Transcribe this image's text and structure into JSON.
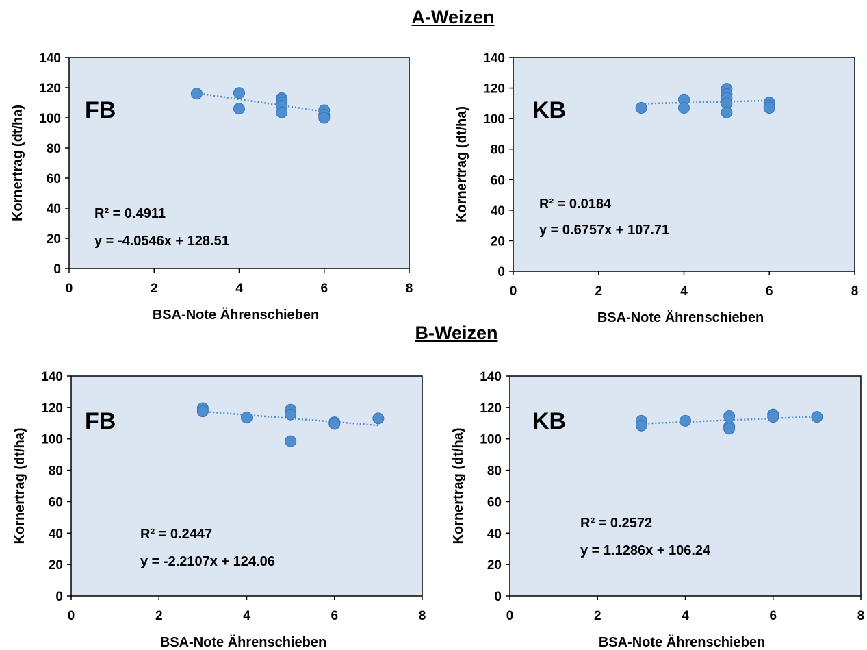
{
  "section_titles": [
    "A-Weizen",
    "B-Weizen"
  ],
  "colors": {
    "plot_background": "#dce6f2",
    "marker": "#4f8fd0",
    "marker_edge": "#3a75b8",
    "trendline": "#4f8fd0"
  },
  "chart_data": [
    {
      "type": "scatter",
      "section": "A-Weizen",
      "panel_label": "FB",
      "xlabel": "BSA-Note Ährenschieben",
      "ylabel": "Kornertrag (dt/ha)",
      "xlim": [
        0,
        8
      ],
      "ylim": [
        0,
        140
      ],
      "x_ticks": [
        0,
        2,
        4,
        6,
        8
      ],
      "y_ticks": [
        0,
        20,
        40,
        60,
        80,
        100,
        120,
        140
      ],
      "grid": false,
      "series": [
        {
          "x": [
            3,
            4,
            4,
            5,
            5,
            5,
            5,
            5,
            6,
            6,
            6
          ],
          "y": [
            116,
            116.5,
            106,
            113,
            112,
            110,
            108,
            103.5,
            105,
            102,
            100
          ]
        }
      ],
      "trendline": {
        "type": "linear",
        "slope": -4.0546,
        "intercept": 128.51
      },
      "annotations": [
        "R² = 0.4911",
        "y = -4.0546x + 128.51"
      ]
    },
    {
      "type": "scatter",
      "section": "A-Weizen",
      "panel_label": "KB",
      "xlabel": "BSA-Note Ährenschieben",
      "ylabel": "Kornertrag (dt/ha)",
      "xlim": [
        0,
        8
      ],
      "ylim": [
        0,
        140
      ],
      "x_ticks": [
        0,
        2,
        4,
        6,
        8
      ],
      "y_ticks": [
        0,
        20,
        40,
        60,
        80,
        100,
        120,
        140
      ],
      "grid": false,
      "series": [
        {
          "x": [
            3,
            4,
            4,
            5,
            5,
            5,
            5,
            5,
            6,
            6,
            6
          ],
          "y": [
            107,
            112.5,
            107,
            119.5,
            116,
            113.5,
            110,
            104,
            110.5,
            108.5,
            107
          ]
        }
      ],
      "trendline": {
        "type": "linear",
        "slope": 0.6757,
        "intercept": 107.71
      },
      "annotations": [
        "R² = 0.0184",
        "y = 0.6757x + 107.71"
      ]
    },
    {
      "type": "scatter",
      "section": "B-Weizen",
      "panel_label": "FB",
      "xlabel": "BSA-Note Ährenschieben",
      "ylabel": "Kornertrag (dt/ha)",
      "xlim": [
        0,
        8
      ],
      "ylim": [
        0,
        140
      ],
      "x_ticks": [
        0,
        2,
        4,
        6,
        8
      ],
      "y_ticks": [
        0,
        20,
        40,
        60,
        80,
        100,
        120,
        140
      ],
      "grid": false,
      "series": [
        {
          "x": [
            3,
            3,
            4,
            5,
            5,
            5,
            6,
            6,
            7
          ],
          "y": [
            119.5,
            117.5,
            113.5,
            118.5,
            115.5,
            98.5,
            110.5,
            109.5,
            113
          ]
        }
      ],
      "trendline": {
        "type": "linear",
        "slope": -2.2107,
        "intercept": 124.06
      },
      "annotations": [
        "R² = 0.2447",
        "y = -2.2107x + 124.06"
      ]
    },
    {
      "type": "scatter",
      "section": "B-Weizen",
      "panel_label": "KB",
      "xlabel": "BSA-Note Ährenschieben",
      "ylabel": "Kornertrag (dt/ha)",
      "xlim": [
        0,
        8
      ],
      "ylim": [
        0,
        140
      ],
      "x_ticks": [
        0,
        2,
        4,
        6,
        8
      ],
      "y_ticks": [
        0,
        20,
        40,
        60,
        80,
        100,
        120,
        140
      ],
      "grid": false,
      "series": [
        {
          "x": [
            3,
            3,
            4,
            5,
            5,
            5,
            6,
            6,
            7
          ],
          "y": [
            111.5,
            108.5,
            111.5,
            114.5,
            108,
            106.5,
            115.5,
            114,
            114
          ]
        }
      ],
      "trendline": {
        "type": "linear",
        "slope": 1.1286,
        "intercept": 106.24
      },
      "annotations": [
        "R² = 0.2572",
        "y = 1.1286x + 106.24"
      ]
    }
  ]
}
